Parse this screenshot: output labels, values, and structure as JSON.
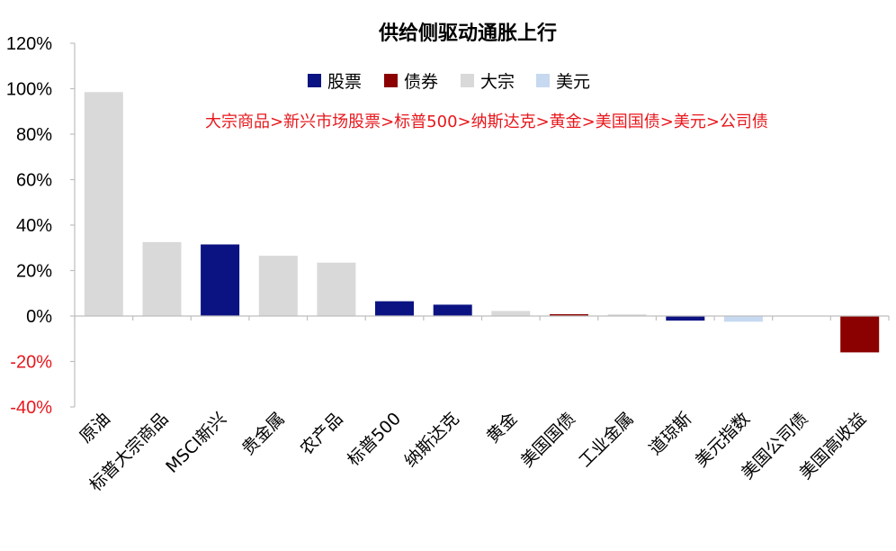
{
  "chart_data": {
    "type": "bar",
    "title": "供给侧驱动通胀上行",
    "xlabel": "",
    "ylabel": "",
    "ylim": [
      -40,
      120
    ],
    "yticks": [
      -40,
      -20,
      0,
      20,
      40,
      60,
      80,
      100,
      120
    ],
    "ytick_labels": [
      "-40%",
      "-20%",
      "0%",
      "20%",
      "40%",
      "60%",
      "80%",
      "100%",
      "120%"
    ],
    "ytick_colors": [
      "#e8171c",
      "#e8171c",
      "#000000",
      "#000000",
      "#000000",
      "#000000",
      "#000000",
      "#000000",
      "#000000"
    ],
    "grid": false,
    "legend_position": "top-center",
    "legend": [
      {
        "name": "股票",
        "color": "#0b1382"
      },
      {
        "name": "债券",
        "color": "#8b0000"
      },
      {
        "name": "大宗",
        "color": "#d9d9d9"
      },
      {
        "name": "美元",
        "color": "#c6d9f1"
      }
    ],
    "annotation": {
      "text": "大宗商品>新兴市场股票>标普500>纳斯达克>黄金>美国国债>美元>公司债",
      "color": "#e8171c"
    },
    "categories": [
      "原油",
      "标普大宗商品",
      "MSCI新兴",
      "贵金属",
      "农产品",
      "标普500",
      "纳斯达克",
      "黄金",
      "美国国债",
      "工业金属",
      "道琼斯",
      "美元指数",
      "美国公司债",
      "美国高收益"
    ],
    "values": [
      98.5,
      32.5,
      31.5,
      26.5,
      23.5,
      6.5,
      5,
      2.2,
      0.8,
      0.7,
      -2,
      -2.5,
      0,
      -16
    ],
    "groups": [
      "大宗",
      "大宗",
      "股票",
      "大宗",
      "大宗",
      "股票",
      "股票",
      "大宗",
      "债券",
      "大宗",
      "股票",
      "美元",
      "债券",
      "债券"
    ]
  }
}
